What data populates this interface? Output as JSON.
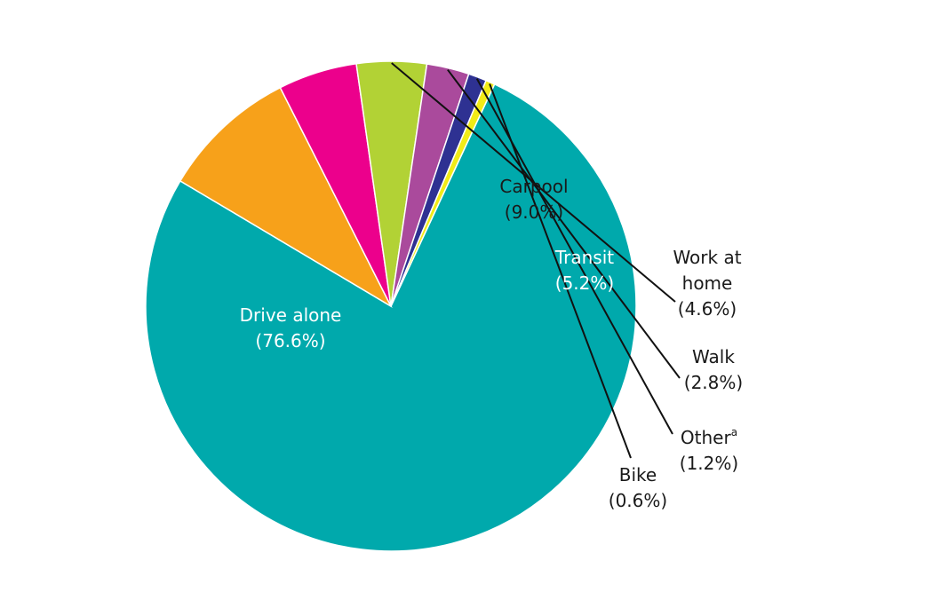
{
  "chart_data": {
    "type": "pie",
    "title": "",
    "slices": [
      {
        "name": "Drive alone",
        "value": 76.6,
        "pct_label": "(76.6%)",
        "color": "#00A9AC",
        "text_color": "#ffffff"
      },
      {
        "name": "Carpool",
        "value": 9.0,
        "pct_label": "(9.0%)",
        "color": "#F7A11A",
        "text_color": "#1a1a1a"
      },
      {
        "name": "Transit",
        "value": 5.2,
        "pct_label": "(5.2%)",
        "color": "#EC008C",
        "text_color": "#ffffff"
      },
      {
        "name": "Work at home",
        "name_lines": [
          "Work at",
          "home"
        ],
        "value": 4.6,
        "pct_label": "(4.6%)",
        "color": "#B2D235",
        "text_color": "#1a1a1a"
      },
      {
        "name": "Walk",
        "value": 2.8,
        "pct_label": "(2.8%)",
        "color": "#AA4A9C",
        "text_color": "#1a1a1a"
      },
      {
        "name": "Other",
        "superscript": "a",
        "value": 1.2,
        "pct_label": "(1.2%)",
        "color": "#2E3192",
        "text_color": "#1a1a1a"
      },
      {
        "name": "Bike",
        "value": 0.6,
        "pct_label": "(0.6%)",
        "color": "#F2EB17",
        "text_color": "#1a1a1a"
      }
    ],
    "legend": "none",
    "direction": "clockwise",
    "start_angle_deg": 295
  }
}
